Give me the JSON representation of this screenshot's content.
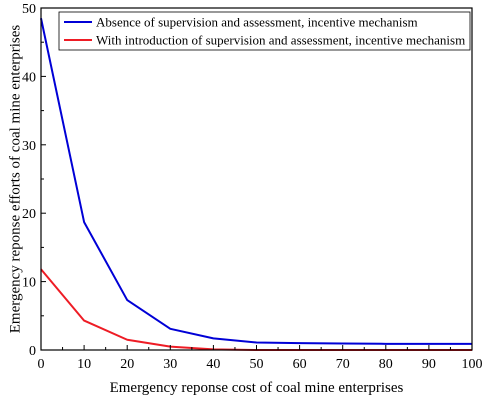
{
  "chart_data": {
    "type": "line",
    "title": "",
    "xlabel": "Emergency reponse cost of coal mine enterprises",
    "ylabel": "Emergency reponse efforts of coal mine enterprises",
    "xlim": [
      0,
      100
    ],
    "ylim": [
      0,
      50
    ],
    "xticks": [
      0,
      10,
      20,
      30,
      40,
      50,
      60,
      70,
      80,
      90,
      100
    ],
    "yticks": [
      0,
      10,
      20,
      30,
      40,
      50
    ],
    "grid": false,
    "legend_position": "top-left",
    "x": [
      0,
      10,
      20,
      30,
      40,
      50,
      60,
      70,
      80,
      90,
      100
    ],
    "series": [
      {
        "name": "Absence of supervision and assessment, incentive mechanism",
        "color": "#0000d6",
        "values": [
          48.5,
          18.7,
          7.3,
          3.1,
          1.7,
          1.1,
          1.0,
          0.95,
          0.9,
          0.9,
          0.9
        ]
      },
      {
        "name": "With introduction of supervision and assessment, incentive mechanism",
        "color": "#ee1c25",
        "values": [
          11.8,
          4.3,
          1.5,
          0.5,
          0.1,
          0.0,
          0.0,
          0.0,
          0.0,
          0.0,
          0.0
        ]
      }
    ]
  }
}
